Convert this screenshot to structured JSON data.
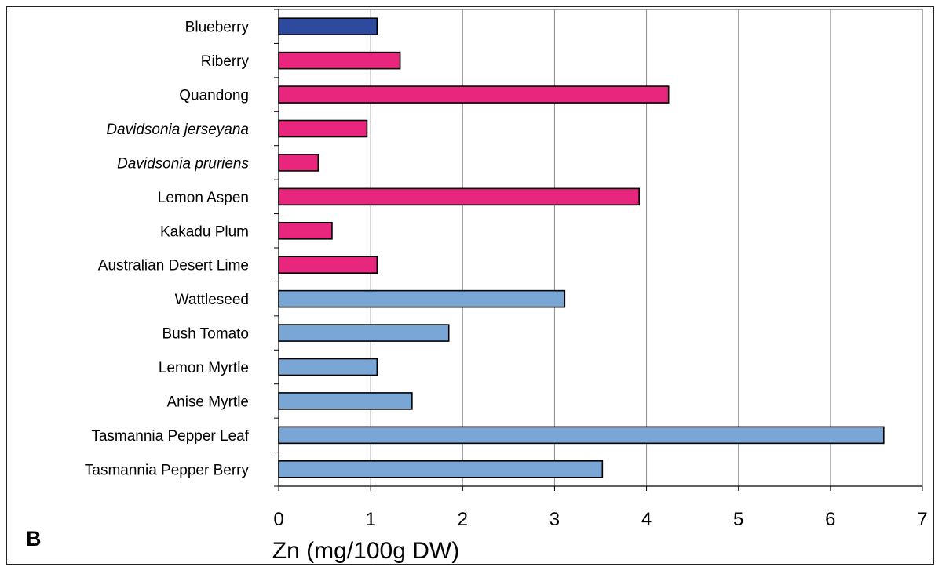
{
  "panel_label": "B",
  "chart_data": {
    "type": "bar",
    "orientation": "horizontal",
    "categories": [
      "Blueberry",
      "Riberry",
      "Quandong",
      "Davidsonia jerseyana",
      "Davidsonia pruriens",
      "Lemon Aspen",
      "Kakadu Plum",
      "Australian Desert Lime",
      "Wattleseed",
      "Bush Tomato",
      "Lemon Myrtle",
      "Anise Myrtle",
      "Tasmannia Pepper Leaf",
      "Tasmannia Pepper Berry"
    ],
    "italic_categories": [
      "Davidsonia jerseyana",
      "Davidsonia pruriens"
    ],
    "values": [
      1.07,
      1.32,
      4.24,
      0.96,
      0.43,
      3.92,
      0.58,
      1.07,
      3.11,
      1.85,
      1.07,
      1.45,
      6.58,
      3.52
    ],
    "bar_colors": [
      "#2e4a9e",
      "#e8267e",
      "#e8267e",
      "#e8267e",
      "#e8267e",
      "#e8267e",
      "#e8267e",
      "#e8267e",
      "#7aa6d6",
      "#7aa6d6",
      "#7aa6d6",
      "#7aa6d6",
      "#7aa6d6",
      "#7aa6d6"
    ],
    "title": "",
    "xlabel": "Zn (mg/100g DW)",
    "ylabel": "",
    "xlim": [
      0,
      7
    ],
    "xticks": [
      "0",
      "1",
      "2",
      "3",
      "4",
      "5",
      "6",
      "7"
    ],
    "grid": "vertical",
    "legend": "none"
  }
}
